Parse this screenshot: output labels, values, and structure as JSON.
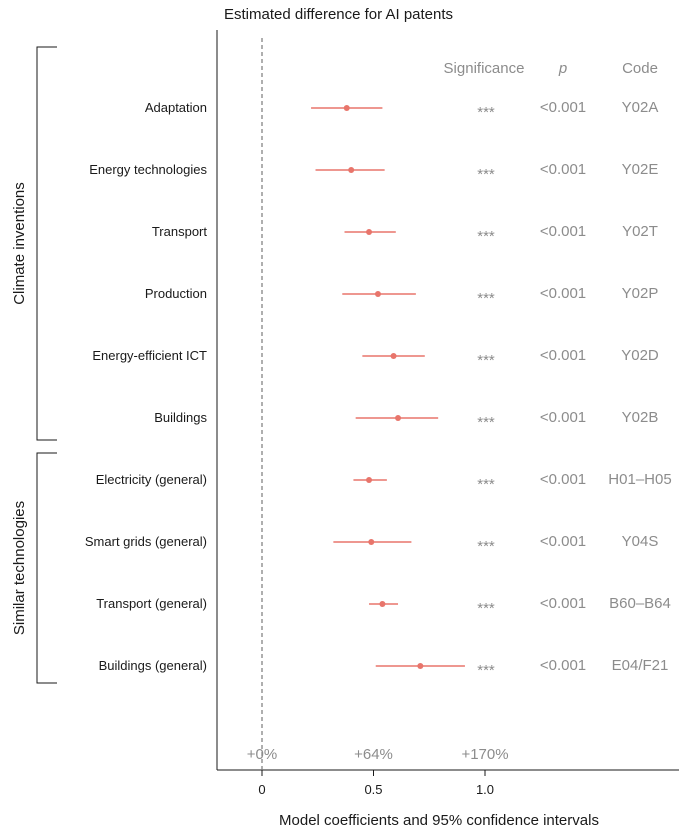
{
  "chart_data": {
    "type": "scatter",
    "title": "Estimated difference for AI patents",
    "xlabel": "Model coefficients and 95% confidence intervals",
    "xlim": [
      -0.2,
      1.18
    ],
    "xticks": [
      "0",
      "0.5",
      "1.0"
    ],
    "xtick_values": [
      0,
      0.5,
      1.0
    ],
    "zero_line": "dashed",
    "percent_labels": [
      "+0%",
      "+64%",
      "+170%"
    ],
    "percent_positions": [
      0,
      0.5,
      1.0
    ],
    "column_headers": {
      "significance": "Significance",
      "p": "p",
      "code": "Code"
    },
    "groups": [
      {
        "label": "Climate inventions",
        "rows": [
          0,
          5
        ]
      },
      {
        "label": "Similar technologies",
        "rows": [
          6,
          9
        ]
      }
    ],
    "rows": [
      {
        "label": "Adaptation",
        "estimate": 0.38,
        "ci": [
          0.22,
          0.54
        ],
        "significance": "***",
        "p": "<0.001",
        "code": "Y02A"
      },
      {
        "label": "Energy technologies",
        "estimate": 0.4,
        "ci": [
          0.24,
          0.55
        ],
        "significance": "***",
        "p": "<0.001",
        "code": "Y02E"
      },
      {
        "label": "Transport",
        "estimate": 0.48,
        "ci": [
          0.37,
          0.6
        ],
        "significance": "***",
        "p": "<0.001",
        "code": "Y02T"
      },
      {
        "label": "Production",
        "estimate": 0.52,
        "ci": [
          0.36,
          0.69
        ],
        "significance": "***",
        "p": "<0.001",
        "code": "Y02P"
      },
      {
        "label": "Energy-efficient ICT",
        "estimate": 0.59,
        "ci": [
          0.45,
          0.73
        ],
        "significance": "***",
        "p": "<0.001",
        "code": "Y02D"
      },
      {
        "label": "Buildings",
        "estimate": 0.61,
        "ci": [
          0.42,
          0.79
        ],
        "significance": "***",
        "p": "<0.001",
        "code": "Y02B"
      },
      {
        "label": "Electricity (general)",
        "estimate": 0.48,
        "ci": [
          0.41,
          0.56
        ],
        "significance": "***",
        "p": "<0.001",
        "code": "H01–H05"
      },
      {
        "label": "Smart grids (general)",
        "estimate": 0.49,
        "ci": [
          0.32,
          0.67
        ],
        "significance": "***",
        "p": "<0.001",
        "code": "Y04S"
      },
      {
        "label": "Transport (general)",
        "estimate": 0.54,
        "ci": [
          0.48,
          0.61
        ],
        "significance": "***",
        "p": "<0.001",
        "code": "B60–B64"
      },
      {
        "label": "Buildings (general)",
        "estimate": 0.71,
        "ci": [
          0.51,
          0.91
        ],
        "significance": "***",
        "p": "<0.001",
        "code": "E04/F21"
      }
    ],
    "marker_color": "#e8756b",
    "text_grey": "#8c8c8c",
    "grid": false,
    "legend": "none"
  }
}
